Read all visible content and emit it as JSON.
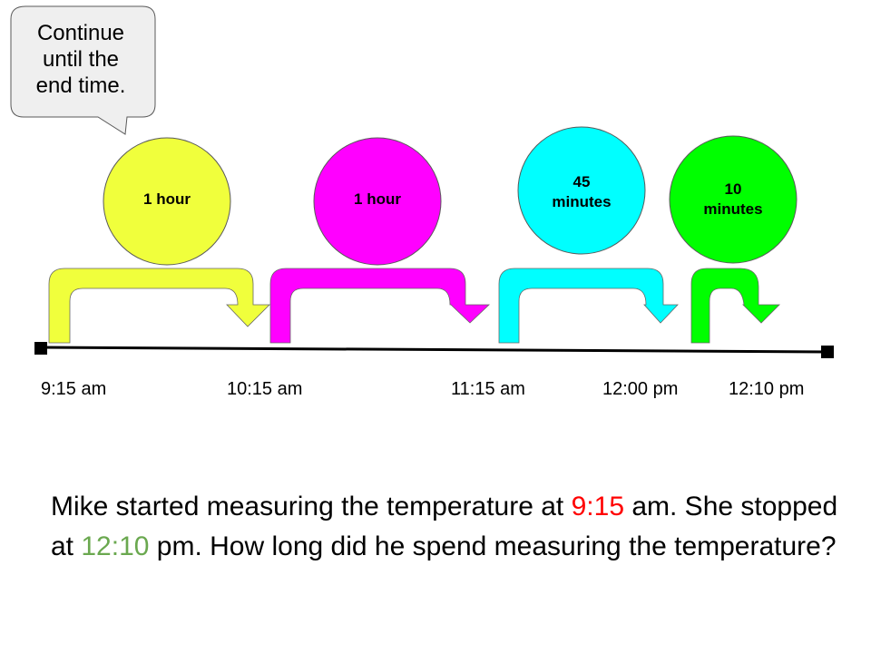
{
  "callout": {
    "lines": [
      "Continue",
      "until the",
      "end time."
    ]
  },
  "intervals": [
    {
      "label_lines": [
        "1 hour"
      ],
      "color": "#f0ff3c"
    },
    {
      "label_lines": [
        "1 hour"
      ],
      "color": "#ff00ff"
    },
    {
      "label_lines": [
        "45",
        "minutes"
      ],
      "color": "#00ffff"
    },
    {
      "label_lines": [
        "10",
        "minutes"
      ],
      "color": "#00ff00"
    }
  ],
  "times": [
    "9:15 am",
    "10:15 am",
    "11:15 am",
    "12:00 pm",
    "12:10 pm"
  ],
  "question": {
    "part1": "Mike started measuring the temperature at ",
    "start_time": "9:15",
    "part2": " am. She stopped at ",
    "end_time": "12:10",
    "part3": " pm. How long did he spend measuring the temperature?",
    "start_color": "#ff0000",
    "end_color": "#6aa84f"
  }
}
